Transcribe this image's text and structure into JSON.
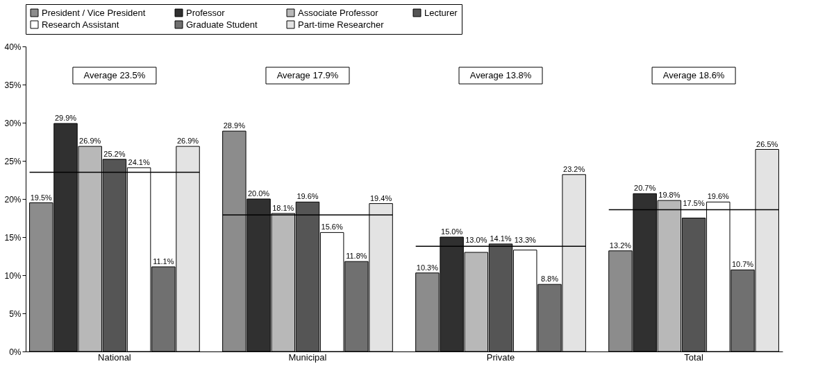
{
  "chart_data": {
    "type": "bar",
    "categories": [
      "National",
      "Municipal",
      "Private",
      "Total"
    ],
    "series": [
      {
        "name": "President / Vice President",
        "color": "#8c8c8c",
        "values": [
          19.5,
          28.9,
          10.3,
          13.2
        ],
        "value_labels": [
          "19.5%",
          "28.9%",
          "10.3%",
          "13.2%"
        ]
      },
      {
        "name": "Professor",
        "color": "#303030",
        "values": [
          29.9,
          20.0,
          15.0,
          20.7
        ],
        "value_labels": [
          "29.9%",
          "20.0%",
          "15.0%",
          "20.7%"
        ]
      },
      {
        "name": "Associate Professor",
        "color": "#b8b8b8",
        "values": [
          26.9,
          18.1,
          13.0,
          19.8
        ],
        "value_labels": [
          "26.9%",
          "18.1%",
          "13.0%",
          "19.8%"
        ]
      },
      {
        "name": "Lecturer",
        "color": "#555555",
        "values": [
          25.2,
          19.6,
          14.1,
          17.5
        ],
        "value_labels": [
          "25.2%",
          "19.6%",
          "14.1%",
          "17.5%"
        ]
      },
      {
        "name": "Research Assistant",
        "color": "#ffffff",
        "values": [
          24.1,
          15.6,
          13.3,
          19.6
        ],
        "value_labels": [
          "24.1%",
          "15.6%",
          "13.3%",
          "19.6%"
        ]
      },
      {
        "name": "Graduate Student",
        "color": "#707070",
        "values": [
          11.1,
          11.8,
          8.8,
          10.7
        ],
        "value_labels": [
          "11.1%",
          "11.8%",
          "8.8%",
          "10.7%"
        ]
      },
      {
        "name": "Part-time Researcher",
        "color": "#e3e3e3",
        "values": [
          26.9,
          19.4,
          23.2,
          26.5
        ],
        "value_labels": [
          "26.9%",
          "19.4%",
          "23.2%",
          "26.5%"
        ]
      }
    ],
    "ylim": [
      0,
      40
    ],
    "yticks": [
      {
        "value": 0,
        "label": "0%"
      },
      {
        "value": 5,
        "label": "5%"
      },
      {
        "value": 10,
        "label": "10%"
      },
      {
        "value": 15,
        "label": "15%"
      },
      {
        "value": 20,
        "label": "20%"
      },
      {
        "value": 25,
        "label": "25%"
      },
      {
        "value": 30,
        "label": "30%"
      },
      {
        "value": 35,
        "label": "35%"
      },
      {
        "value": 40,
        "label": "40%"
      }
    ],
    "ref_lines": [
      {
        "axis": "y",
        "value": 23.5,
        "color": "#000000"
      },
      {
        "axis": "y",
        "value": 17.9,
        "color": "#000000"
      },
      {
        "axis": "y",
        "value": 13.8,
        "color": "#000000"
      },
      {
        "axis": "y",
        "value": 18.6,
        "color": "#000000"
      }
    ],
    "annotations": [
      "Average 23.5%",
      "Average 17.9%",
      "Average 13.8%",
      "Average 18.6%"
    ],
    "legend": "top"
  }
}
